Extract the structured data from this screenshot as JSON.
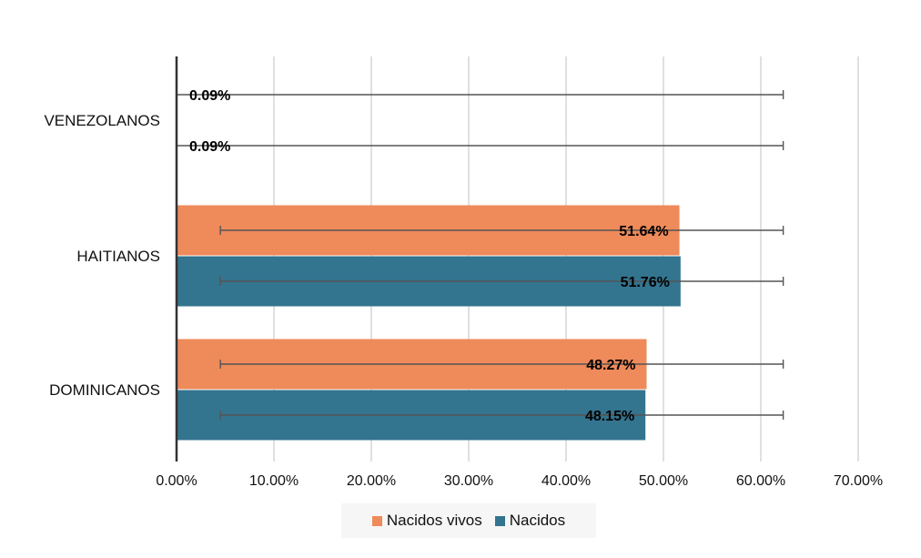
{
  "chart_data": {
    "type": "bar",
    "orientation": "horizontal",
    "categories": [
      "VENEZOLANOS",
      "HAITIANOS",
      "DOMINICANOS"
    ],
    "series": [
      {
        "name": "Nacidos vivos",
        "color": "#ef8a5a",
        "values": [
          0.09,
          51.64,
          48.27
        ],
        "labels": [
          "0.09%",
          "51.64%",
          "48.27%"
        ]
      },
      {
        "name": "Nacidos",
        "color": "#33748f",
        "values": [
          0.09,
          51.76,
          48.15
        ],
        "labels": [
          "0.09%",
          "51.76%",
          "48.15%"
        ]
      }
    ],
    "error_bars": [
      [
        [
          0,
          62.3
        ],
        [
          4.5,
          62.3
        ],
        [
          4.5,
          62.3
        ]
      ],
      [
        [
          0,
          62.3
        ],
        [
          4.5,
          62.3
        ],
        [
          4.5,
          62.3
        ]
      ]
    ],
    "xlim": [
      0,
      70
    ],
    "xticks": [
      "0.00%",
      "10.00%",
      "20.00%",
      "30.00%",
      "40.00%",
      "50.00%",
      "60.00%",
      "70.00%"
    ],
    "grid": true,
    "legend_position": "bottom",
    "title": "",
    "xlabel": "",
    "ylabel": ""
  }
}
